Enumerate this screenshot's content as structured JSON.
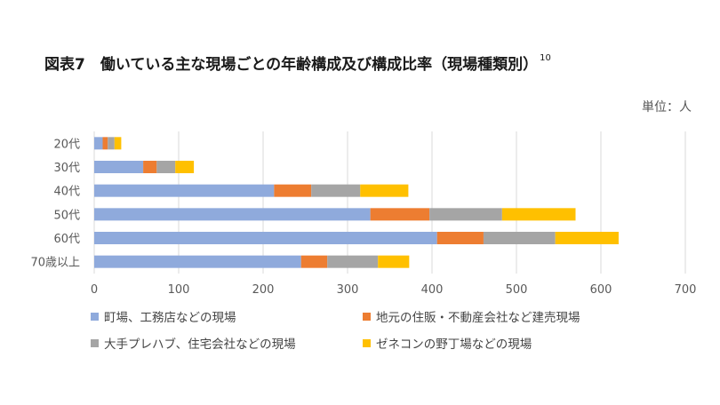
{
  "figure": {
    "title": "図表7　働いている主な現場ごとの年齢構成及び構成比率（現場種類別）",
    "footnote_mark": "10",
    "unit_label": "単位：人"
  },
  "chart_data": {
    "type": "bar",
    "orientation": "horizontal",
    "stacked": true,
    "title": "図表7　働いている主な現場ごとの年齢構成及び構成比率（現場種類別）",
    "unit": "単位：人",
    "categories": [
      "20代",
      "30代",
      "40代",
      "50代",
      "60代",
      "70歳以上"
    ],
    "xlim": [
      0,
      700
    ],
    "xticks": [
      0,
      100,
      200,
      300,
      400,
      500,
      600,
      700
    ],
    "grid": true,
    "legend_position": "bottom",
    "series": [
      {
        "name": "町場、工務店などの現場",
        "color": "#8FAADC",
        "values": [
          10,
          58,
          213,
          327,
          406,
          245
        ]
      },
      {
        "name": "地元の住販・不動産会社など建売現場",
        "color": "#ED7D31",
        "values": [
          6,
          16,
          44,
          70,
          55,
          31
        ]
      },
      {
        "name": "大手プレハブ、住宅会社などの現場",
        "color": "#A5A5A5",
        "values": [
          8,
          22,
          58,
          86,
          85,
          60
        ]
      },
      {
        "name": "ゼネコンの野丁場などの現場",
        "color": "#FFC000",
        "values": [
          8,
          22,
          57,
          87,
          75,
          37
        ]
      }
    ]
  }
}
